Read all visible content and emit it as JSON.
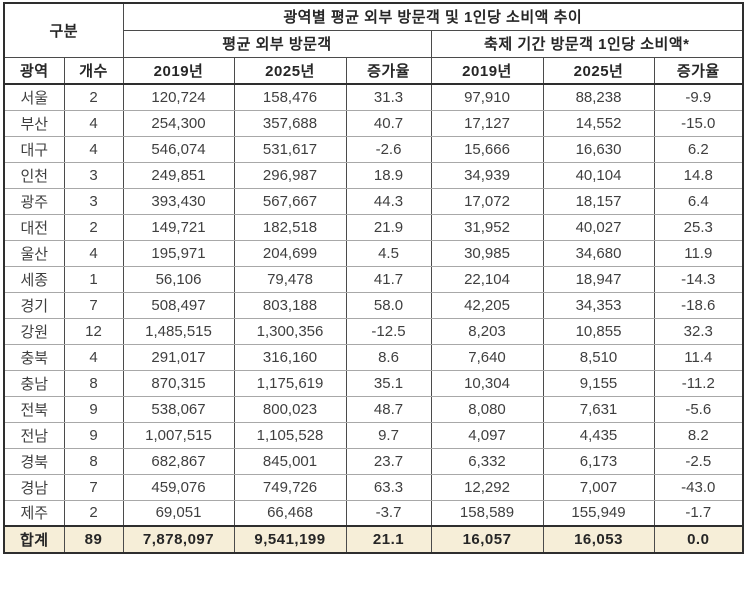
{
  "chart_data": {
    "type": "table",
    "title": "광역별 평균 외부 방문객 및 1인당 소비액 추이",
    "group_header": "구분",
    "section_headers": [
      "평균 외부 방문객",
      "축제 기간 방문객 1인당 소비액*"
    ],
    "columns": [
      "광역",
      "개수",
      "2019년",
      "2025년",
      "증가율",
      "2019년",
      "2025년",
      "증가율"
    ],
    "rows": [
      [
        "서울",
        "2",
        "120,724",
        "158,476",
        "31.3",
        "97,910",
        "88,238",
        "-9.9"
      ],
      [
        "부산",
        "4",
        "254,300",
        "357,688",
        "40.7",
        "17,127",
        "14,552",
        "-15.0"
      ],
      [
        "대구",
        "4",
        "546,074",
        "531,617",
        "-2.6",
        "15,666",
        "16,630",
        "6.2"
      ],
      [
        "인천",
        "3",
        "249,851",
        "296,987",
        "18.9",
        "34,939",
        "40,104",
        "14.8"
      ],
      [
        "광주",
        "3",
        "393,430",
        "567,667",
        "44.3",
        "17,072",
        "18,157",
        "6.4"
      ],
      [
        "대전",
        "2",
        "149,721",
        "182,518",
        "21.9",
        "31,952",
        "40,027",
        "25.3"
      ],
      [
        "울산",
        "4",
        "195,971",
        "204,699",
        "4.5",
        "30,985",
        "34,680",
        "11.9"
      ],
      [
        "세종",
        "1",
        "56,106",
        "79,478",
        "41.7",
        "22,104",
        "18,947",
        "-14.3"
      ],
      [
        "경기",
        "7",
        "508,497",
        "803,188",
        "58.0",
        "42,205",
        "34,353",
        "-18.6"
      ],
      [
        "강원",
        "12",
        "1,485,515",
        "1,300,356",
        "-12.5",
        "8,203",
        "10,855",
        "32.3"
      ],
      [
        "충북",
        "4",
        "291,017",
        "316,160",
        "8.6",
        "7,640",
        "8,510",
        "11.4"
      ],
      [
        "충남",
        "8",
        "870,315",
        "1,175,619",
        "35.1",
        "10,304",
        "9,155",
        "-11.2"
      ],
      [
        "전북",
        "9",
        "538,067",
        "800,023",
        "48.7",
        "8,080",
        "7,631",
        "-5.6"
      ],
      [
        "전남",
        "9",
        "1,007,515",
        "1,105,528",
        "9.7",
        "4,097",
        "4,435",
        "8.2"
      ],
      [
        "경북",
        "8",
        "682,867",
        "845,001",
        "23.7",
        "6,332",
        "6,173",
        "-2.5"
      ],
      [
        "경남",
        "7",
        "459,076",
        "749,726",
        "63.3",
        "12,292",
        "7,007",
        "-43.0"
      ],
      [
        "제주",
        "2",
        "69,051",
        "66,468",
        "-3.7",
        "158,589",
        "155,949",
        "-1.7"
      ]
    ],
    "total_row": [
      "합계",
      "89",
      "7,878,097",
      "9,541,199",
      "21.1",
      "16,057",
      "16,053",
      "0.0"
    ]
  },
  "colors": {
    "total_row_bg": "#f6eed8",
    "border_dark": "#2e2e2e",
    "grid_line": "#a8a8a8",
    "header_text": "#262626",
    "body_text": "#3f3f3f"
  }
}
